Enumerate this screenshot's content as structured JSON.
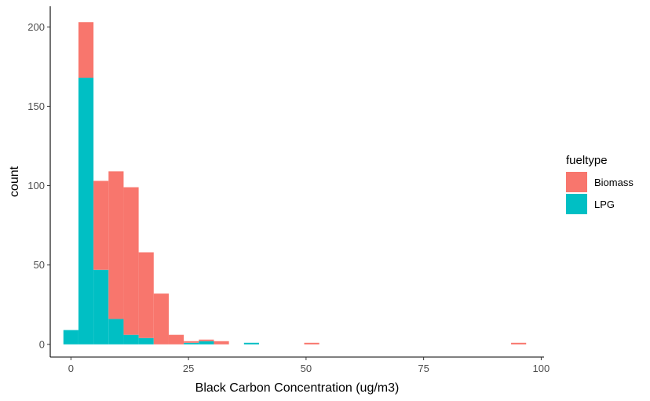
{
  "chart_data": {
    "type": "bar",
    "subtype": "stacked-histogram",
    "xlabel": "Black Carbon Concentration (ug/m3)",
    "ylabel": "count",
    "xlim": [
      -4.4,
      100.6
    ],
    "ylim": [
      -8,
      213
    ],
    "x_ticks": [
      0,
      25,
      50,
      75,
      100
    ],
    "y_ticks": [
      0,
      50,
      100,
      150,
      200
    ],
    "grid": false,
    "legend": {
      "title": "fueltype",
      "position": "right"
    },
    "bin_width": 3.2,
    "bins": [
      {
        "x0": -1.6,
        "x1": 1.6
      },
      {
        "x0": 1.6,
        "x1": 4.8
      },
      {
        "x0": 4.8,
        "x1": 8.0
      },
      {
        "x0": 8.0,
        "x1": 11.2
      },
      {
        "x0": 11.2,
        "x1": 14.4
      },
      {
        "x0": 14.4,
        "x1": 17.6
      },
      {
        "x0": 17.6,
        "x1": 20.8
      },
      {
        "x0": 20.8,
        "x1": 24.0
      },
      {
        "x0": 24.0,
        "x1": 27.2
      },
      {
        "x0": 27.2,
        "x1": 30.4
      },
      {
        "x0": 30.4,
        "x1": 33.6
      },
      {
        "x0": 36.8,
        "x1": 40.0
      },
      {
        "x0": 49.6,
        "x1": 52.8
      },
      {
        "x0": 93.6,
        "x1": 96.8
      }
    ],
    "series": [
      {
        "name": "LPG",
        "color": "#00BFC4",
        "values": [
          9,
          168,
          47,
          16,
          6,
          4,
          0,
          0,
          1,
          2,
          0,
          1,
          0,
          0
        ]
      },
      {
        "name": "Biomass",
        "color": "#F8766D",
        "values": [
          0,
          35,
          56,
          93,
          93,
          54,
          32,
          6,
          1,
          1,
          2,
          0,
          1,
          1
        ]
      }
    ]
  }
}
